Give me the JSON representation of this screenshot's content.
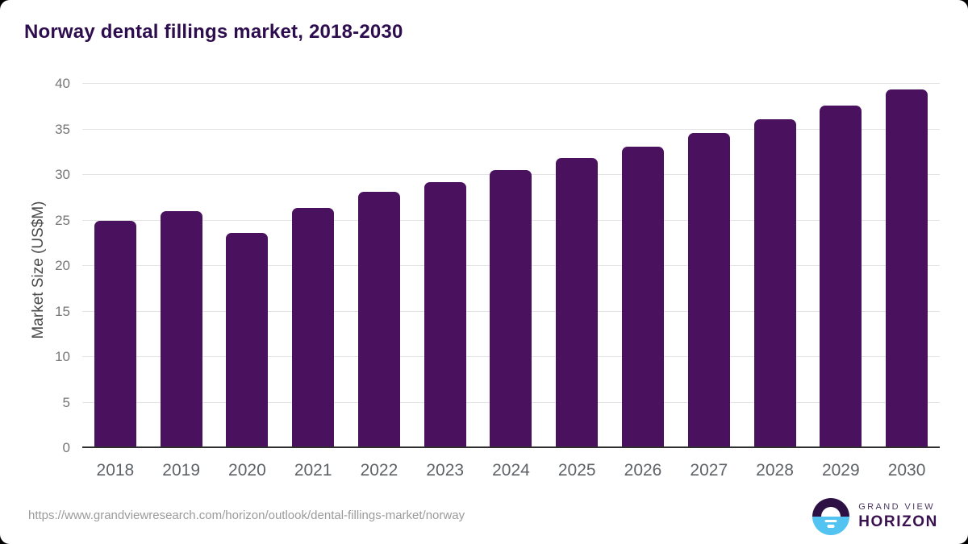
{
  "chart_data": {
    "type": "bar",
    "title": "Norway dental fillings market, 2018-2030",
    "categories": [
      "2018",
      "2019",
      "2020",
      "2021",
      "2022",
      "2023",
      "2024",
      "2025",
      "2026",
      "2027",
      "2028",
      "2029",
      "2030"
    ],
    "values": [
      24.9,
      26.0,
      23.6,
      26.3,
      28.1,
      29.2,
      30.5,
      31.8,
      33.1,
      34.6,
      36.1,
      37.6,
      39.4
    ],
    "xlabel": "",
    "ylabel": "Market Size (US$M)",
    "ylim": [
      0,
      40
    ],
    "ytick_step": 5,
    "grid": true,
    "legend_position": "none",
    "bar_color": "#4a115e"
  },
  "footer": {
    "source_url": "https://www.grandviewresearch.com/horizon/outlook/dental-fillings-market/norway",
    "logo_line1": "GRAND VIEW",
    "logo_line2": "HORIZON"
  },
  "colors": {
    "title_text": "#2e0d4e",
    "bar": "#4a115e",
    "gridline": "#e3e3e3",
    "axis_line": "#2f2f2f",
    "x_tick_text": "#5f6368",
    "y_tick_text": "#767676",
    "url_text": "#9b9b9b",
    "logo_purple": "#2d1144",
    "logo_blue": "#53c3f1"
  }
}
